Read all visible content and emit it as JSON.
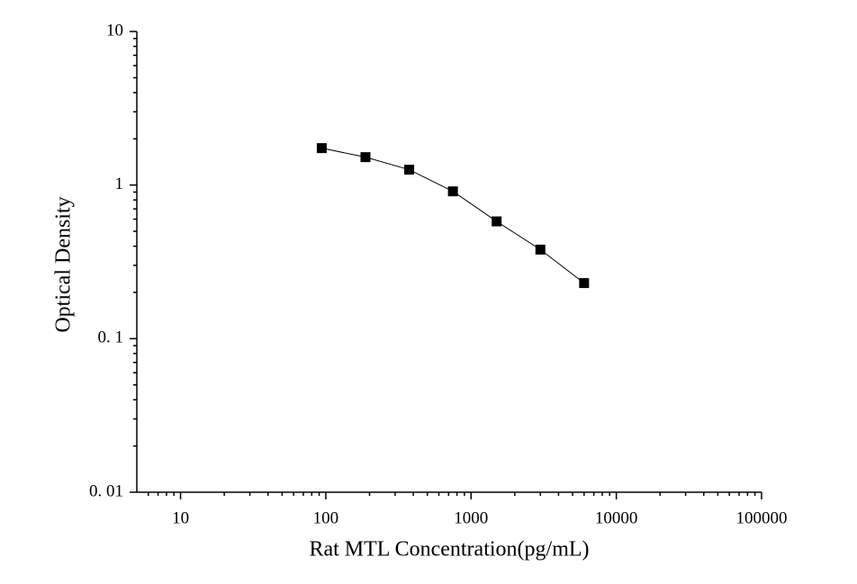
{
  "chart_data": {
    "type": "line",
    "x_label": "Rat MTL Concentration(pg/mL)",
    "y_label": "Optical Density",
    "x": [
      93.75,
      187.5,
      375,
      750,
      1500,
      3000,
      6000
    ],
    "series": [
      {
        "color": "#000000",
        "values": [
          1.74,
          1.52,
          1.26,
          0.91,
          0.58,
          0.38,
          0.23
        ]
      }
    ],
    "xlim": [
      5,
      100000
    ],
    "ylim": [
      0.01,
      10
    ],
    "xscale": "log",
    "yscale": "log",
    "xticks": [
      10,
      100,
      1000,
      10000,
      100000
    ],
    "yticks": [
      {
        "value": 0.01,
        "label": "0. 01"
      },
      {
        "value": 0.1,
        "label": "0. 1"
      },
      1,
      10
    ],
    "grid": false
  }
}
